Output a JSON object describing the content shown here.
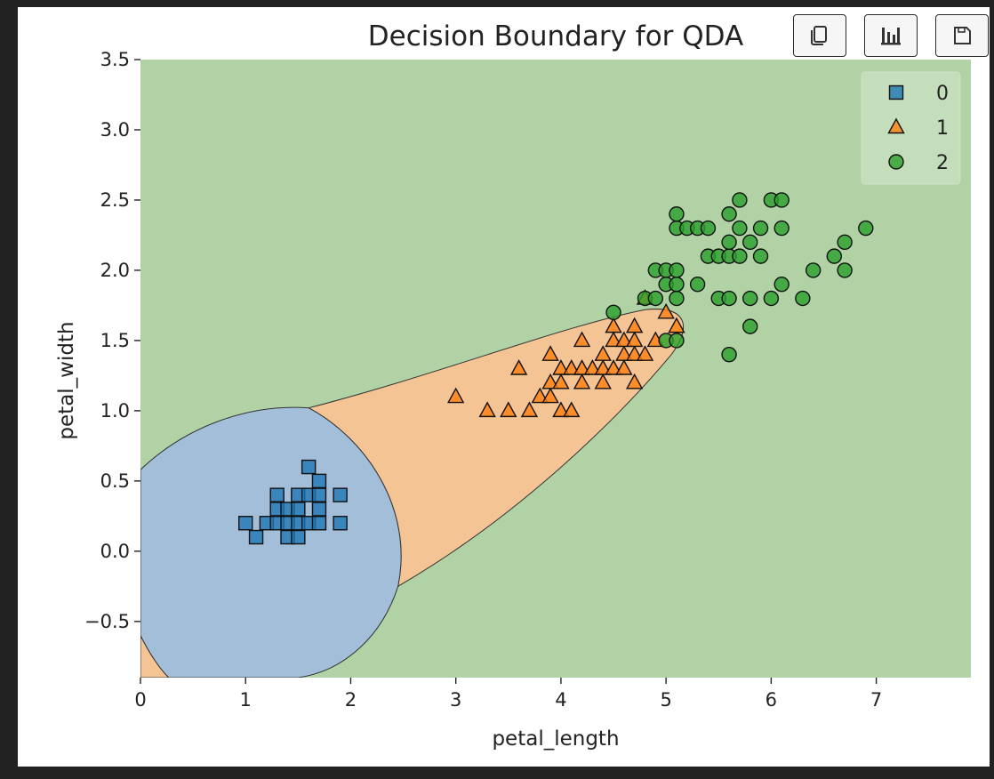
{
  "toolbar": {
    "buttons": [
      {
        "icon": "copy-icon"
      },
      {
        "icon": "bar-chart-icon"
      },
      {
        "icon": "save-icon"
      }
    ]
  },
  "colors": {
    "class_0": "#1f77b4",
    "class_1": "#ff7f0e",
    "class_2": "#2ca02c",
    "region_0": "#a3bed9",
    "region_1": "#f5c495",
    "region_2": "#b0d2a5"
  },
  "chart_data": {
    "type": "scatter",
    "title": "Decision Boundary for QDA",
    "xlabel": "petal_length",
    "ylabel": "petal_width",
    "xlim": [
      0,
      7.9
    ],
    "ylim": [
      -0.9,
      3.5
    ],
    "xticks": [
      "0",
      "1",
      "2",
      "3",
      "4",
      "5",
      "6",
      "7"
    ],
    "yticks": [
      "−0.5",
      "0.0",
      "0.5",
      "1.0",
      "1.5",
      "2.0",
      "2.5",
      "3.0",
      "3.5"
    ],
    "legend_position": "top-right",
    "grid": false,
    "decision_regions": [
      "0",
      "1",
      "2"
    ],
    "series": [
      {
        "name": "0",
        "marker": "square",
        "points": [
          [
            1.0,
            0.2
          ],
          [
            1.1,
            0.1
          ],
          [
            1.2,
            0.2
          ],
          [
            1.3,
            0.2
          ],
          [
            1.3,
            0.3
          ],
          [
            1.3,
            0.4
          ],
          [
            1.4,
            0.1
          ],
          [
            1.4,
            0.2
          ],
          [
            1.4,
            0.3
          ],
          [
            1.5,
            0.1
          ],
          [
            1.5,
            0.2
          ],
          [
            1.5,
            0.3
          ],
          [
            1.5,
            0.4
          ],
          [
            1.6,
            0.2
          ],
          [
            1.6,
            0.4
          ],
          [
            1.6,
            0.6
          ],
          [
            1.7,
            0.2
          ],
          [
            1.7,
            0.3
          ],
          [
            1.7,
            0.4
          ],
          [
            1.7,
            0.5
          ],
          [
            1.9,
            0.2
          ],
          [
            1.9,
            0.4
          ]
        ]
      },
      {
        "name": "1",
        "marker": "triangle",
        "points": [
          [
            3.0,
            1.1
          ],
          [
            3.3,
            1.0
          ],
          [
            3.5,
            1.0
          ],
          [
            3.6,
            1.3
          ],
          [
            3.7,
            1.0
          ],
          [
            3.8,
            1.1
          ],
          [
            3.9,
            1.1
          ],
          [
            3.9,
            1.2
          ],
          [
            3.9,
            1.4
          ],
          [
            4.0,
            1.0
          ],
          [
            4.0,
            1.2
          ],
          [
            4.0,
            1.3
          ],
          [
            4.1,
            1.0
          ],
          [
            4.1,
            1.3
          ],
          [
            4.2,
            1.2
          ],
          [
            4.2,
            1.3
          ],
          [
            4.2,
            1.5
          ],
          [
            4.3,
            1.3
          ],
          [
            4.4,
            1.2
          ],
          [
            4.4,
            1.3
          ],
          [
            4.4,
            1.4
          ],
          [
            4.5,
            1.3
          ],
          [
            4.5,
            1.5
          ],
          [
            4.5,
            1.6
          ],
          [
            4.6,
            1.3
          ],
          [
            4.6,
            1.4
          ],
          [
            4.6,
            1.5
          ],
          [
            4.7,
            1.2
          ],
          [
            4.7,
            1.4
          ],
          [
            4.7,
            1.5
          ],
          [
            4.7,
            1.6
          ],
          [
            4.8,
            1.4
          ],
          [
            4.8,
            1.8
          ],
          [
            4.9,
            1.5
          ],
          [
            5.0,
            1.7
          ],
          [
            5.1,
            1.6
          ]
        ]
      },
      {
        "name": "2",
        "marker": "circle",
        "points": [
          [
            4.5,
            1.7
          ],
          [
            4.8,
            1.8
          ],
          [
            4.9,
            1.8
          ],
          [
            4.9,
            2.0
          ],
          [
            5.0,
            1.5
          ],
          [
            5.0,
            1.9
          ],
          [
            5.0,
            2.0
          ],
          [
            5.1,
            1.5
          ],
          [
            5.1,
            1.8
          ],
          [
            5.1,
            1.9
          ],
          [
            5.1,
            2.0
          ],
          [
            5.1,
            2.3
          ],
          [
            5.1,
            2.4
          ],
          [
            5.2,
            2.3
          ],
          [
            5.3,
            1.9
          ],
          [
            5.3,
            2.3
          ],
          [
            5.4,
            2.1
          ],
          [
            5.4,
            2.3
          ],
          [
            5.5,
            1.8
          ],
          [
            5.5,
            2.1
          ],
          [
            5.6,
            1.4
          ],
          [
            5.6,
            1.8
          ],
          [
            5.6,
            2.1
          ],
          [
            5.6,
            2.2
          ],
          [
            5.6,
            2.4
          ],
          [
            5.7,
            2.1
          ],
          [
            5.7,
            2.3
          ],
          [
            5.7,
            2.5
          ],
          [
            5.8,
            1.6
          ],
          [
            5.8,
            1.8
          ],
          [
            5.8,
            2.2
          ],
          [
            5.9,
            2.1
          ],
          [
            5.9,
            2.3
          ],
          [
            6.0,
            1.8
          ],
          [
            6.0,
            2.5
          ],
          [
            6.1,
            1.9
          ],
          [
            6.1,
            2.3
          ],
          [
            6.1,
            2.5
          ],
          [
            6.3,
            1.8
          ],
          [
            6.4,
            2.0
          ],
          [
            6.6,
            2.1
          ],
          [
            6.7,
            2.0
          ],
          [
            6.7,
            2.2
          ],
          [
            6.9,
            2.3
          ]
        ]
      }
    ]
  }
}
